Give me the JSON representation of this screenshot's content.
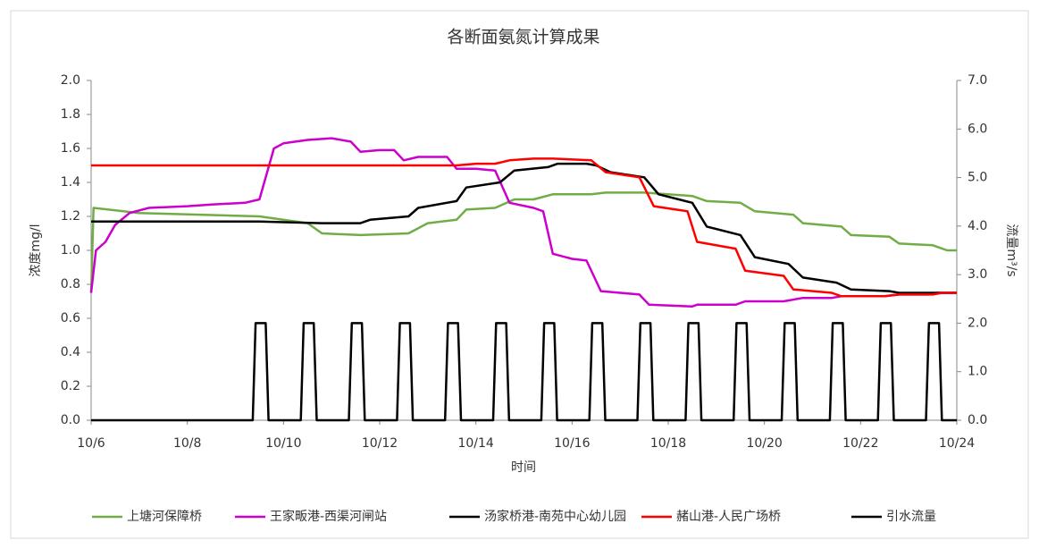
{
  "chart_data": {
    "type": "line",
    "title": "各断面氨氮计算成果",
    "xlabel": "时间",
    "ylabel": "浓度mg/l",
    "y2label": "流量m³/s",
    "xlim": [
      6,
      24
    ],
    "xticks": [
      {
        "value": 6,
        "label": "10/6"
      },
      {
        "value": 8,
        "label": "10/8"
      },
      {
        "value": 10,
        "label": "10/10"
      },
      {
        "value": 12,
        "label": "10/12"
      },
      {
        "value": 14,
        "label": "10/14"
      },
      {
        "value": 16,
        "label": "10/16"
      },
      {
        "value": 18,
        "label": "10/18"
      },
      {
        "value": 20,
        "label": "10/20"
      },
      {
        "value": 22,
        "label": "10/22"
      },
      {
        "value": 24,
        "label": "10/24"
      }
    ],
    "ylim": [
      0,
      2
    ],
    "yticks": [
      {
        "value": 0,
        "label": "0.0"
      },
      {
        "value": 0.2,
        "label": "0.2"
      },
      {
        "value": 0.4,
        "label": "0.4"
      },
      {
        "value": 0.6,
        "label": "0.6"
      },
      {
        "value": 0.8,
        "label": "0.8"
      },
      {
        "value": 1,
        "label": "1.0"
      },
      {
        "value": 1.2,
        "label": "1.2"
      },
      {
        "value": 1.4,
        "label": "1.4"
      },
      {
        "value": 1.6,
        "label": "1.6"
      },
      {
        "value": 1.8,
        "label": "1.8"
      },
      {
        "value": 2,
        "label": "2.0"
      }
    ],
    "y2lim": [
      0,
      7
    ],
    "y2ticks": [
      {
        "value": 0,
        "label": "0.0"
      },
      {
        "value": 1,
        "label": "1.0"
      },
      {
        "value": 2,
        "label": "2.0"
      },
      {
        "value": 3,
        "label": "3.0"
      },
      {
        "value": 4,
        "label": "4.0"
      },
      {
        "value": 5,
        "label": "5.0"
      },
      {
        "value": 6,
        "label": "6.0"
      },
      {
        "value": 7,
        "label": "7.0"
      }
    ],
    "grid": false,
    "legend": "bottom",
    "series": [
      {
        "name": "上塘河保障桥",
        "color": "#70ad47",
        "x": [
          6,
          6.05,
          7,
          9.5,
          10.5,
          10.8,
          11.6,
          12.6,
          13,
          13.6,
          13.8,
          14.4,
          14.8,
          15.2,
          15.6,
          16.4,
          16.7,
          17.5,
          18.5,
          18.8,
          19.5,
          19.8,
          20.6,
          20.8,
          21.6,
          21.8,
          22.6,
          22.8,
          23.5,
          23.8,
          24
        ],
        "values": [
          0.75,
          1.25,
          1.22,
          1.2,
          1.16,
          1.1,
          1.09,
          1.1,
          1.16,
          1.18,
          1.24,
          1.25,
          1.3,
          1.3,
          1.33,
          1.33,
          1.34,
          1.34,
          1.32,
          1.29,
          1.28,
          1.23,
          1.21,
          1.16,
          1.14,
          1.09,
          1.08,
          1.04,
          1.03,
          1,
          1
        ]
      },
      {
        "name": "王家畈港-西渠河闸站",
        "color": "#cc00cc",
        "x": [
          6,
          6.1,
          6.3,
          6.5,
          6.8,
          7.2,
          8,
          8.5,
          9.2,
          9.5,
          9.8,
          10,
          10.5,
          11,
          11.4,
          11.6,
          12,
          12.3,
          12.5,
          12.8,
          13.4,
          13.6,
          14,
          14.4,
          14.7,
          15.2,
          15.4,
          15.6,
          16,
          16.3,
          16.6,
          17,
          17.4,
          17.6,
          18.5,
          18.6,
          19.4,
          19.6,
          20.4,
          20.8,
          21.4,
          21.6,
          22.5,
          22.8,
          23.4,
          23.6,
          24
        ],
        "values": [
          0.75,
          1,
          1.05,
          1.15,
          1.22,
          1.25,
          1.26,
          1.27,
          1.28,
          1.3,
          1.6,
          1.63,
          1.65,
          1.66,
          1.64,
          1.58,
          1.59,
          1.59,
          1.53,
          1.55,
          1.55,
          1.48,
          1.48,
          1.47,
          1.28,
          1.25,
          1.23,
          0.98,
          0.95,
          0.94,
          0.76,
          0.75,
          0.74,
          0.68,
          0.67,
          0.68,
          0.68,
          0.7,
          0.7,
          0.72,
          0.72,
          0.73,
          0.73,
          0.74,
          0.74,
          0.75,
          0.75
        ]
      },
      {
        "name": "汤家桥港-南苑中心幼儿园",
        "color": "#000000",
        "x": [
          6,
          9.5,
          10.8,
          11.6,
          11.8,
          12.6,
          12.8,
          13.6,
          13.8,
          14.5,
          14.8,
          15.5,
          15.7,
          16.3,
          16.5,
          16.8,
          17.5,
          17.8,
          18.5,
          18.8,
          19.5,
          19.8,
          20.5,
          20.8,
          21.5,
          21.8,
          22.6,
          22.8,
          24
        ],
        "values": [
          1.17,
          1.17,
          1.16,
          1.16,
          1.18,
          1.2,
          1.25,
          1.29,
          1.37,
          1.4,
          1.47,
          1.49,
          1.51,
          1.51,
          1.5,
          1.46,
          1.43,
          1.33,
          1.28,
          1.14,
          1.09,
          0.96,
          0.92,
          0.84,
          0.81,
          0.77,
          0.76,
          0.75,
          0.75
        ]
      },
      {
        "name": "赭山港-人民广场桥",
        "color": "#ff0000",
        "x": [
          6,
          13.6,
          14,
          14.4,
          14.7,
          15.2,
          15.6,
          16.4,
          16.7,
          17.4,
          17.7,
          18.4,
          18.6,
          19.4,
          19.6,
          20.4,
          20.6,
          21.4,
          21.6,
          22.5,
          22.8,
          23.5,
          23.7,
          24
        ],
        "values": [
          1.5,
          1.5,
          1.51,
          1.51,
          1.53,
          1.54,
          1.54,
          1.53,
          1.46,
          1.43,
          1.26,
          1.23,
          1.05,
          1.01,
          0.88,
          0.85,
          0.77,
          0.75,
          0.73,
          0.73,
          0.74,
          0.74,
          0.75,
          0.75
        ]
      },
      {
        "name": "引水流量",
        "color": "#000000",
        "axis": "y2",
        "x": [
          6,
          9.36,
          9.42,
          9.63,
          9.69,
          10.36,
          10.42,
          10.63,
          10.69,
          11.36,
          11.42,
          11.63,
          11.69,
          12.36,
          12.42,
          12.63,
          12.69,
          13.36,
          13.42,
          13.63,
          13.69,
          14.36,
          14.42,
          14.63,
          14.69,
          15.36,
          15.42,
          15.63,
          15.69,
          16.36,
          16.42,
          16.63,
          16.69,
          17.36,
          17.42,
          17.63,
          17.69,
          18.36,
          18.42,
          18.63,
          18.69,
          19.36,
          19.42,
          19.63,
          19.69,
          20.36,
          20.42,
          20.63,
          20.69,
          21.36,
          21.42,
          21.63,
          21.69,
          22.36,
          22.42,
          22.63,
          22.69,
          23.36,
          23.42,
          23.63,
          23.69,
          24
        ],
        "values": [
          0,
          0,
          2,
          2,
          0,
          0,
          2,
          2,
          0,
          0,
          2,
          2,
          0,
          0,
          2,
          2,
          0,
          0,
          2,
          2,
          0,
          0,
          2,
          2,
          0,
          0,
          2,
          2,
          0,
          0,
          2,
          2,
          0,
          0,
          2,
          2,
          0,
          0,
          2,
          2,
          0,
          0,
          2,
          2,
          0,
          0,
          2,
          2,
          0,
          0,
          2,
          2,
          0,
          0,
          2,
          2,
          0,
          0,
          2,
          2,
          0,
          0
        ]
      }
    ]
  }
}
